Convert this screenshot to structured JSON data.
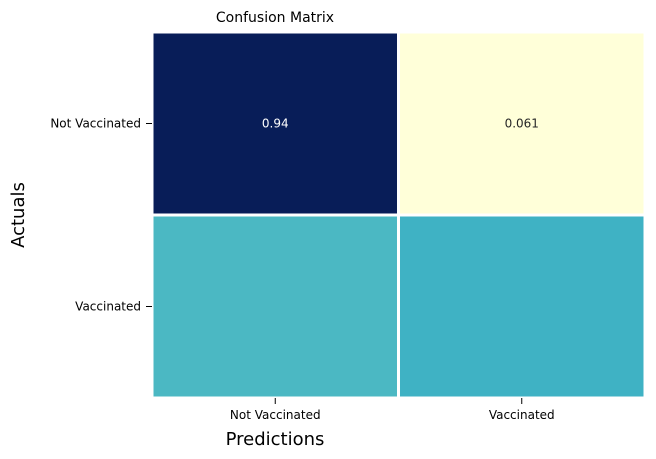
{
  "chart_data": {
    "type": "heatmap",
    "title": "Confusion Matrix",
    "xlabel": "Predictions",
    "ylabel": "Actuals",
    "x_categories": [
      "Not Vaccinated",
      "Vaccinated"
    ],
    "y_categories": [
      "Not Vaccinated",
      "Vaccinated"
    ],
    "values": [
      [
        0.94,
        0.061
      ],
      [
        0.48,
        0.52
      ]
    ],
    "cell_labels": [
      [
        "0.94",
        "0.061"
      ],
      [
        "",
        ""
      ]
    ],
    "colors": [
      [
        "#081d58",
        "#ffffd9"
      ],
      [
        "#4bb8c3",
        "#3fb2c4"
      ]
    ],
    "label_colors": [
      [
        "#ffffff",
        "#262626"
      ],
      [
        "#262626",
        "#262626"
      ]
    ],
    "colormap": "YlGnBu",
    "colorbar": false,
    "cell_separator_color": "#ffffff"
  }
}
